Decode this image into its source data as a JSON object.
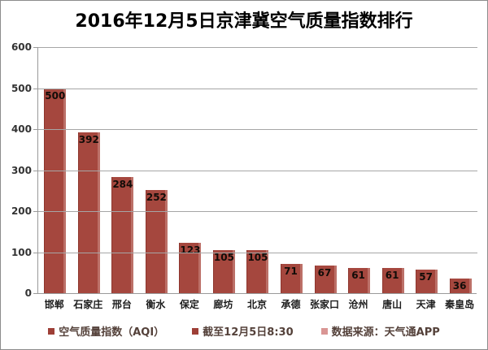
{
  "chart_data": {
    "type": "bar",
    "title": "2016年12月5日京津冀空气质量指数排行",
    "categories": [
      "邯郸",
      "石家庄",
      "邢台",
      "衡水",
      "保定",
      "廊坊",
      "北京",
      "承德",
      "张家口",
      "沧州",
      "唐山",
      "天津",
      "秦皇岛"
    ],
    "values": [
      500,
      392,
      284,
      252,
      123,
      105,
      105,
      71,
      67,
      61,
      61,
      57,
      36
    ],
    "xlabel": "",
    "ylabel": "",
    "ylim": [
      0,
      600
    ],
    "yticks": [
      0,
      100,
      200,
      300,
      400,
      500,
      600
    ],
    "grid": true,
    "bar_color": "#a5473e",
    "value_label_color": "#120c08",
    "legend_position": "bottom",
    "legend": [
      {
        "label": "空气质量指数（AQI）",
        "color": "#9e3f37"
      },
      {
        "label": "截至12月5日8:30",
        "color": "#9e3f37"
      },
      {
        "label": "数据来源：天气通APP",
        "color": "#d99694"
      }
    ]
  }
}
